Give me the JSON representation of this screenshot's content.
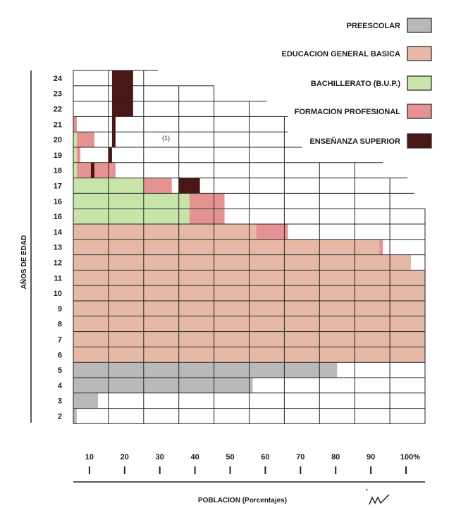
{
  "chart_data": {
    "type": "bar",
    "orientation": "horizontal",
    "stacked": true,
    "ylabel": "AÑOS DE EDAD",
    "xlabel": "POBLACION (Porcentajes)",
    "categories": [
      "2",
      "3",
      "4",
      "5",
      "6",
      "7",
      "8",
      "9",
      "10",
      "11",
      "12",
      "13",
      "14",
      "16",
      "16",
      "17",
      "18",
      "19",
      "20",
      "21",
      "22",
      "23",
      "24"
    ],
    "x_ticks": [
      "10",
      "20",
      "30",
      "40",
      "50",
      "60",
      "70",
      "80",
      "90",
      "100%"
    ],
    "xlim": [
      0,
      100
    ],
    "annotation": "(1)",
    "legend_position": "top-right",
    "series": [
      {
        "name": "PREESCOLAR",
        "color": "#b9b9b9",
        "values": [
          1,
          7,
          51,
          75,
          0,
          0,
          0,
          0,
          0,
          0,
          0,
          0,
          0,
          0,
          0,
          0,
          0,
          0,
          0,
          0,
          0,
          0,
          0
        ]
      },
      {
        "name": "EDUCACION GENERAL BASICA",
        "color": "#e6b8a6",
        "values": [
          0,
          0,
          0,
          0,
          100,
          100,
          100,
          100,
          100,
          100,
          96,
          87,
          52,
          0,
          0,
          0,
          0,
          0,
          0,
          0,
          0,
          0,
          0
        ]
      },
      {
        "name": "BACHILLERATO (B.U.P.)",
        "color": "#c9e4a8",
        "values": [
          0,
          0,
          0,
          0,
          0,
          0,
          0,
          0,
          0,
          0,
          0,
          0,
          0,
          33,
          33,
          20,
          1,
          1,
          1,
          0,
          0,
          0,
          0
        ]
      },
      {
        "name": "FORMACION PROFESIONAL",
        "color": "#e59392",
        "values": [
          0,
          0,
          0,
          0,
          0,
          0,
          0,
          0,
          0,
          0,
          0,
          1,
          9,
          10,
          10,
          8,
          11,
          1,
          5,
          1,
          0,
          0,
          0
        ]
      },
      {
        "name": "ENSEÑANZA SUPERIOR",
        "color": "#4a1717",
        "values": [
          0,
          0,
          0,
          0,
          0,
          0,
          0,
          0,
          0,
          0,
          0,
          0,
          0,
          0,
          0,
          0,
          0,
          0,
          0,
          0,
          0,
          0,
          0
        ]
      }
    ],
    "superior_segments": [
      [
        0,
        0
      ],
      [
        0,
        0
      ],
      [
        0,
        0
      ],
      [
        0,
        0
      ],
      [
        0,
        0
      ],
      [
        0,
        0
      ],
      [
        0,
        0
      ],
      [
        0,
        0
      ],
      [
        0,
        0
      ],
      [
        0,
        0
      ],
      [
        0,
        0
      ],
      [
        0,
        0
      ],
      [
        0,
        0
      ],
      [
        0,
        0
      ],
      [
        0,
        0
      ],
      [
        30,
        6
      ],
      [
        5,
        1
      ],
      [
        10,
        1
      ],
      [
        11,
        1
      ],
      [
        11,
        1
      ],
      [
        11,
        6
      ],
      [
        11,
        6
      ],
      [
        11,
        6
      ]
    ],
    "outline_extent": [
      100,
      100,
      100,
      100,
      100,
      100,
      100,
      100,
      100,
      100,
      100,
      100,
      100,
      100,
      97,
      95,
      88,
      65,
      61,
      61,
      55,
      40,
      24
    ]
  }
}
